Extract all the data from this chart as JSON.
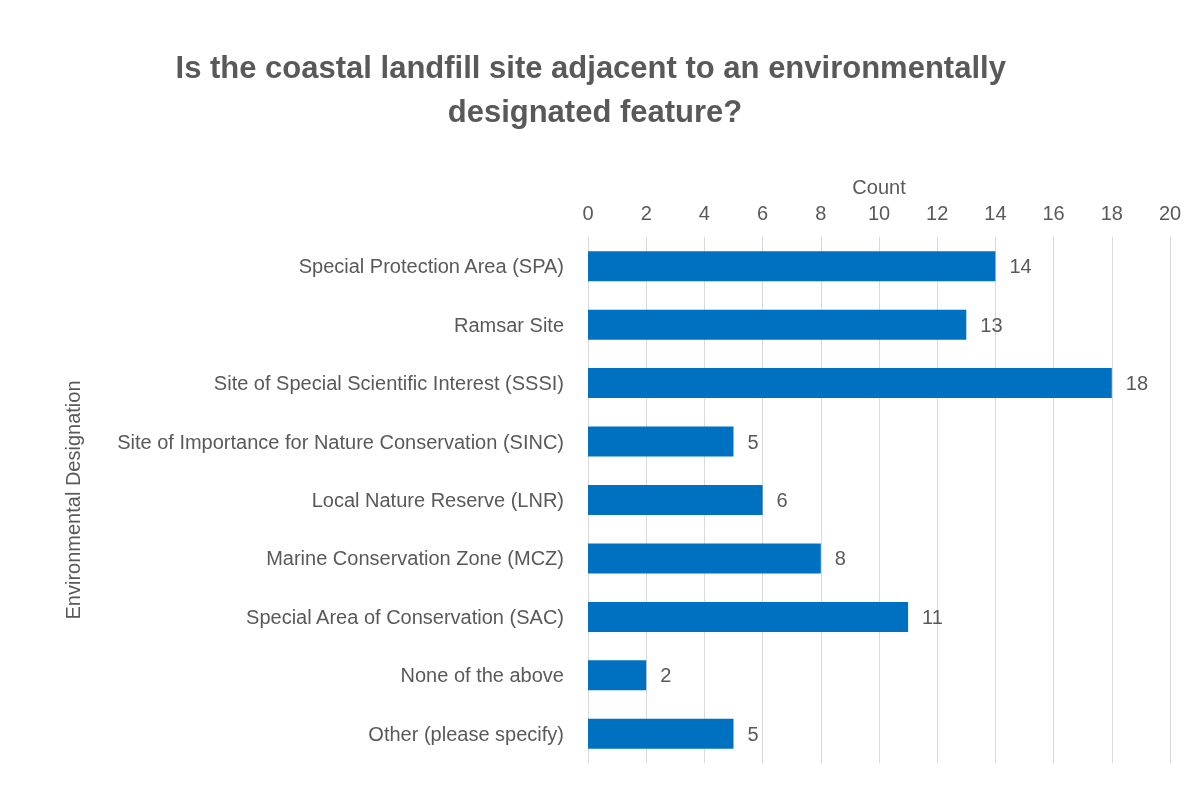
{
  "chart_data": {
    "type": "bar",
    "orientation": "horizontal",
    "title": "Is the coastal landfill site adjacent to an environmentally designated feature?",
    "xlabel": "Count",
    "ylabel": "Environmental Designation",
    "categories": [
      "Special Protection Area (SPA)",
      "Ramsar Site",
      "Site of Special Scientific Interest (SSSI)",
      "Site of Importance for Nature Conservation (SINC)",
      "Local Nature Reserve (LNR)",
      "Marine Conservation Zone (MCZ)",
      "Special Area of Conservation (SAC)",
      "None of the above",
      "Other (please specify)"
    ],
    "values": [
      14,
      13,
      18,
      5,
      6,
      8,
      11,
      2,
      5
    ],
    "color": "#0070c0",
    "xlim": [
      0,
      20
    ],
    "xticks": [
      0,
      2,
      4,
      6,
      8,
      10,
      12,
      14,
      16,
      18,
      20
    ],
    "grid": "x",
    "data_labels": true
  }
}
